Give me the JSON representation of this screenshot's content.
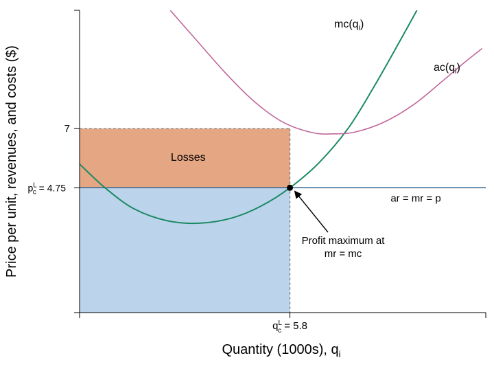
{
  "chart_data": {
    "type": "line",
    "ylabel": "Price per unit, revenues, and costs ($)",
    "xlabel_main": "Quantity (1000s), q",
    "xlabel_sub": "i",
    "y_ticks": [
      {
        "value": 7,
        "label": "7"
      },
      {
        "value": 4.75,
        "label_base": "p",
        "label_sup": "L",
        "label_sub": "c",
        "label_rest": " = 4.75"
      }
    ],
    "x_ticks": [
      {
        "value": 5.8,
        "label_base": "q",
        "label_sup": "L",
        "label_sub": "c",
        "label_rest": " = 5.8"
      }
    ],
    "regions": {
      "losses_label": "Losses",
      "losses_color": "#e4a683",
      "revenue_color": "#bcd3ec"
    },
    "series": [
      {
        "name_base": "mc(q",
        "name_sub": "i",
        "name_end": ")",
        "color": "#1a8a63",
        "points": [
          [
            0,
            5.65
          ],
          [
            0.7,
            4.75
          ],
          [
            1.5,
            3.95
          ],
          [
            2.4,
            3.5
          ],
          [
            3.3,
            3.4
          ],
          [
            4.2,
            3.6
          ],
          [
            5.0,
            4.05
          ],
          [
            5.8,
            4.75
          ],
          [
            6.6,
            5.7
          ],
          [
            7.4,
            7.0
          ],
          [
            8.1,
            8.55
          ],
          [
            8.8,
            10.25
          ],
          [
            9.3,
            11.5
          ]
        ]
      },
      {
        "name_base": "ac(q",
        "name_sub": "i",
        "name_end": ")",
        "color": "#c0679a",
        "points": [
          [
            2.5,
            11.5
          ],
          [
            3.2,
            10.4
          ],
          [
            4.0,
            9.15
          ],
          [
            4.8,
            8.05
          ],
          [
            5.6,
            7.25
          ],
          [
            6.4,
            6.85
          ],
          [
            7.0,
            6.8
          ],
          [
            7.6,
            6.87
          ],
          [
            8.4,
            7.25
          ],
          [
            9.2,
            7.9
          ],
          [
            10.0,
            8.8
          ],
          [
            10.6,
            9.5
          ],
          [
            11.1,
            10.05
          ]
        ]
      }
    ],
    "hline": {
      "value": 4.75,
      "label": "ar = mr = p",
      "color": "#2f6690"
    },
    "optimum": {
      "x": 5.8,
      "y": 4.75
    },
    "annotation": {
      "line1": "Profit maximum at",
      "line2": "mr = mc"
    },
    "xlim": [
      0,
      11.2
    ],
    "ylim": [
      0,
      11.5
    ]
  }
}
